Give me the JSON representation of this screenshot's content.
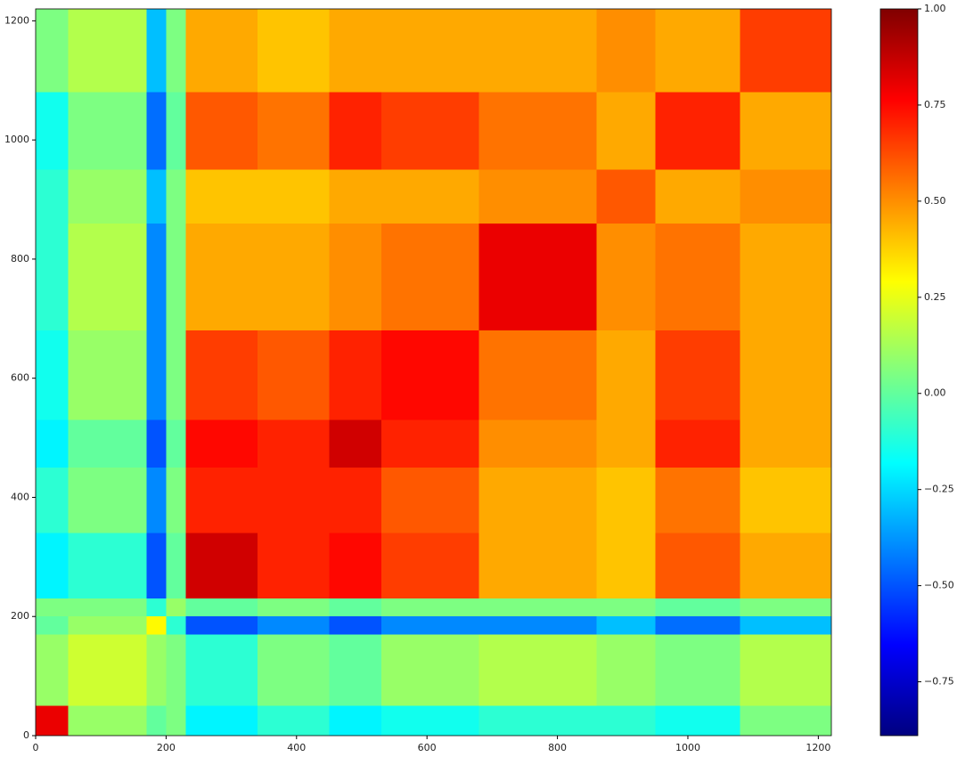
{
  "chart_data": {
    "type": "heatmap",
    "colormap": "jet",
    "edges": [
      0,
      50,
      170,
      200,
      230,
      340,
      450,
      530,
      680,
      860,
      950,
      1080,
      1220
    ],
    "values": [
      [
        0.8,
        0.1,
        0.0,
        0.05,
        -0.2,
        -0.1,
        -0.2,
        -0.15,
        -0.1,
        -0.1,
        -0.15,
        0.05
      ],
      [
        0.1,
        0.2,
        0.1,
        0.05,
        -0.1,
        0.05,
        0.0,
        0.1,
        0.15,
        0.1,
        0.05,
        0.15
      ],
      [
        0.0,
        0.1,
        0.3,
        -0.1,
        -0.5,
        -0.4,
        -0.5,
        -0.4,
        -0.4,
        -0.3,
        -0.45,
        -0.3
      ],
      [
        0.05,
        0.05,
        -0.1,
        0.1,
        0.0,
        0.05,
        0.0,
        0.05,
        0.05,
        0.05,
        0.0,
        0.05
      ],
      [
        -0.2,
        -0.1,
        -0.5,
        0.0,
        0.85,
        0.7,
        0.75,
        0.65,
        0.45,
        0.4,
        0.6,
        0.45
      ],
      [
        -0.1,
        0.05,
        -0.4,
        0.05,
        0.7,
        0.7,
        0.7,
        0.6,
        0.45,
        0.4,
        0.55,
        0.4
      ],
      [
        -0.2,
        0.0,
        -0.5,
        0.0,
        0.75,
        0.7,
        0.85,
        0.7,
        0.5,
        0.45,
        0.7,
        0.45
      ],
      [
        -0.15,
        0.1,
        -0.4,
        0.05,
        0.65,
        0.6,
        0.7,
        0.75,
        0.55,
        0.45,
        0.65,
        0.45
      ],
      [
        -0.1,
        0.15,
        -0.4,
        0.05,
        0.45,
        0.45,
        0.5,
        0.55,
        0.8,
        0.5,
        0.55,
        0.45
      ],
      [
        -0.1,
        0.1,
        -0.3,
        0.05,
        0.4,
        0.4,
        0.45,
        0.45,
        0.5,
        0.6,
        0.45,
        0.5
      ],
      [
        -0.15,
        0.05,
        -0.45,
        0.0,
        0.6,
        0.55,
        0.7,
        0.65,
        0.55,
        0.45,
        0.7,
        0.45
      ],
      [
        0.05,
        0.15,
        -0.3,
        0.05,
        0.45,
        0.4,
        0.45,
        0.45,
        0.45,
        0.5,
        0.45,
        0.65
      ]
    ],
    "xlim": [
      0,
      1220
    ],
    "ylim": [
      0,
      1220
    ],
    "xticks": [
      0,
      200,
      400,
      600,
      800,
      1000,
      1200
    ],
    "yticks": [
      0,
      200,
      400,
      600,
      800,
      1000,
      1200
    ],
    "clim": [
      -0.89,
      1.0
    ],
    "cticks": [
      {
        "value": -0.75,
        "label": "−0.75"
      },
      {
        "value": -0.5,
        "label": "−0.50"
      },
      {
        "value": -0.25,
        "label": "−0.25"
      },
      {
        "value": 0,
        "label": "0.00"
      },
      {
        "value": 0.25,
        "label": "0.25"
      },
      {
        "value": 0.5,
        "label": "0.50"
      },
      {
        "value": 0.75,
        "label": "0.75"
      },
      {
        "value": 1.0,
        "label": "1.00"
      }
    ]
  }
}
